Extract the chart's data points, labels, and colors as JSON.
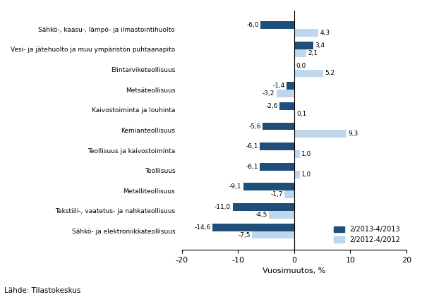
{
  "categories": [
    "Sähkö-, kaasu-, lämpö- ja ilmastointihuolto",
    "Vesi- ja jätehuolto ja muu ympäristön puhtaanapito",
    "Elintarviketeollisuus",
    "Metsäteollisuus",
    "Kaivostoiminta ja louhinta",
    "Kemianteollisuus",
    "Teollisuus ja kaivostoiminta",
    "Teollisuus",
    "Metalliteollisuus",
    "Tekstiili-, vaatetus- ja nahkateollisuus",
    "Sähkö- ja elektroniikkateollisuus"
  ],
  "values_2013": [
    -6.0,
    3.4,
    0.0,
    -1.4,
    -2.6,
    -5.6,
    -6.1,
    -6.1,
    -9.1,
    -11.0,
    -14.6
  ],
  "values_2012": [
    4.3,
    2.1,
    5.2,
    -3.2,
    0.1,
    9.3,
    1.0,
    1.0,
    -1.7,
    -4.5,
    -7.5
  ],
  "labels_2013": [
    "-6,0",
    "3,4",
    "0,0",
    "-1,4",
    "-2,6",
    "-5,6",
    "-6,1",
    "-6,1",
    "-9,1",
    "-11,0",
    "-14,6"
  ],
  "labels_2012": [
    "4,3",
    "2,1",
    "5,2",
    "-3,2",
    "0,1",
    "9,3",
    "1,0",
    "1,0",
    "-1,7",
    "-4,5",
    "-7,5"
  ],
  "color_2013": "#1F4E79",
  "color_2012": "#BDD7EE",
  "legend_2013": "2/2013-4/2013",
  "legend_2012": "2/2012-4/2012",
  "xlabel": "Vuosimuutos, %",
  "source": "Lähde: Tilastokeskus",
  "xlim": [
    -20,
    20
  ],
  "xticks": [
    -20,
    -10,
    0,
    10,
    20
  ]
}
